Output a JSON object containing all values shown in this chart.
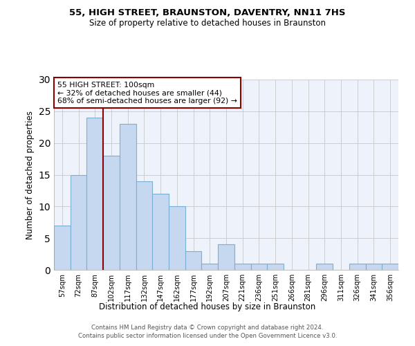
{
  "title1": "55, HIGH STREET, BRAUNSTON, DAVENTRY, NN11 7HS",
  "title2": "Size of property relative to detached houses in Braunston",
  "xlabel": "Distribution of detached houses by size in Braunston",
  "ylabel": "Number of detached properties",
  "categories": [
    "57sqm",
    "72sqm",
    "87sqm",
    "102sqm",
    "117sqm",
    "132sqm",
    "147sqm",
    "162sqm",
    "177sqm",
    "192sqm",
    "207sqm",
    "221sqm",
    "236sqm",
    "251sqm",
    "266sqm",
    "281sqm",
    "296sqm",
    "311sqm",
    "326sqm",
    "341sqm",
    "356sqm"
  ],
  "values": [
    7,
    15,
    24,
    18,
    23,
    14,
    12,
    10,
    3,
    1,
    4,
    1,
    1,
    1,
    0,
    0,
    1,
    0,
    1,
    1,
    1
  ],
  "bar_color": "#c5d8f0",
  "bar_edge_color": "#7aafd4",
  "bar_edge_width": 0.8,
  "vline_x_index": 2,
  "vline_color": "#8b0000",
  "annotation_text": "55 HIGH STREET: 100sqm\n← 32% of detached houses are smaller (44)\n68% of semi-detached houses are larger (92) →",
  "annotation_box_color": "#8b0000",
  "ylim": [
    0,
    30
  ],
  "yticks": [
    0,
    5,
    10,
    15,
    20,
    25,
    30
  ],
  "grid_color": "#c8c8c8",
  "bg_color": "#edf2fb",
  "footer1": "Contains HM Land Registry data © Crown copyright and database right 2024.",
  "footer2": "Contains public sector information licensed under the Open Government Licence v3.0."
}
